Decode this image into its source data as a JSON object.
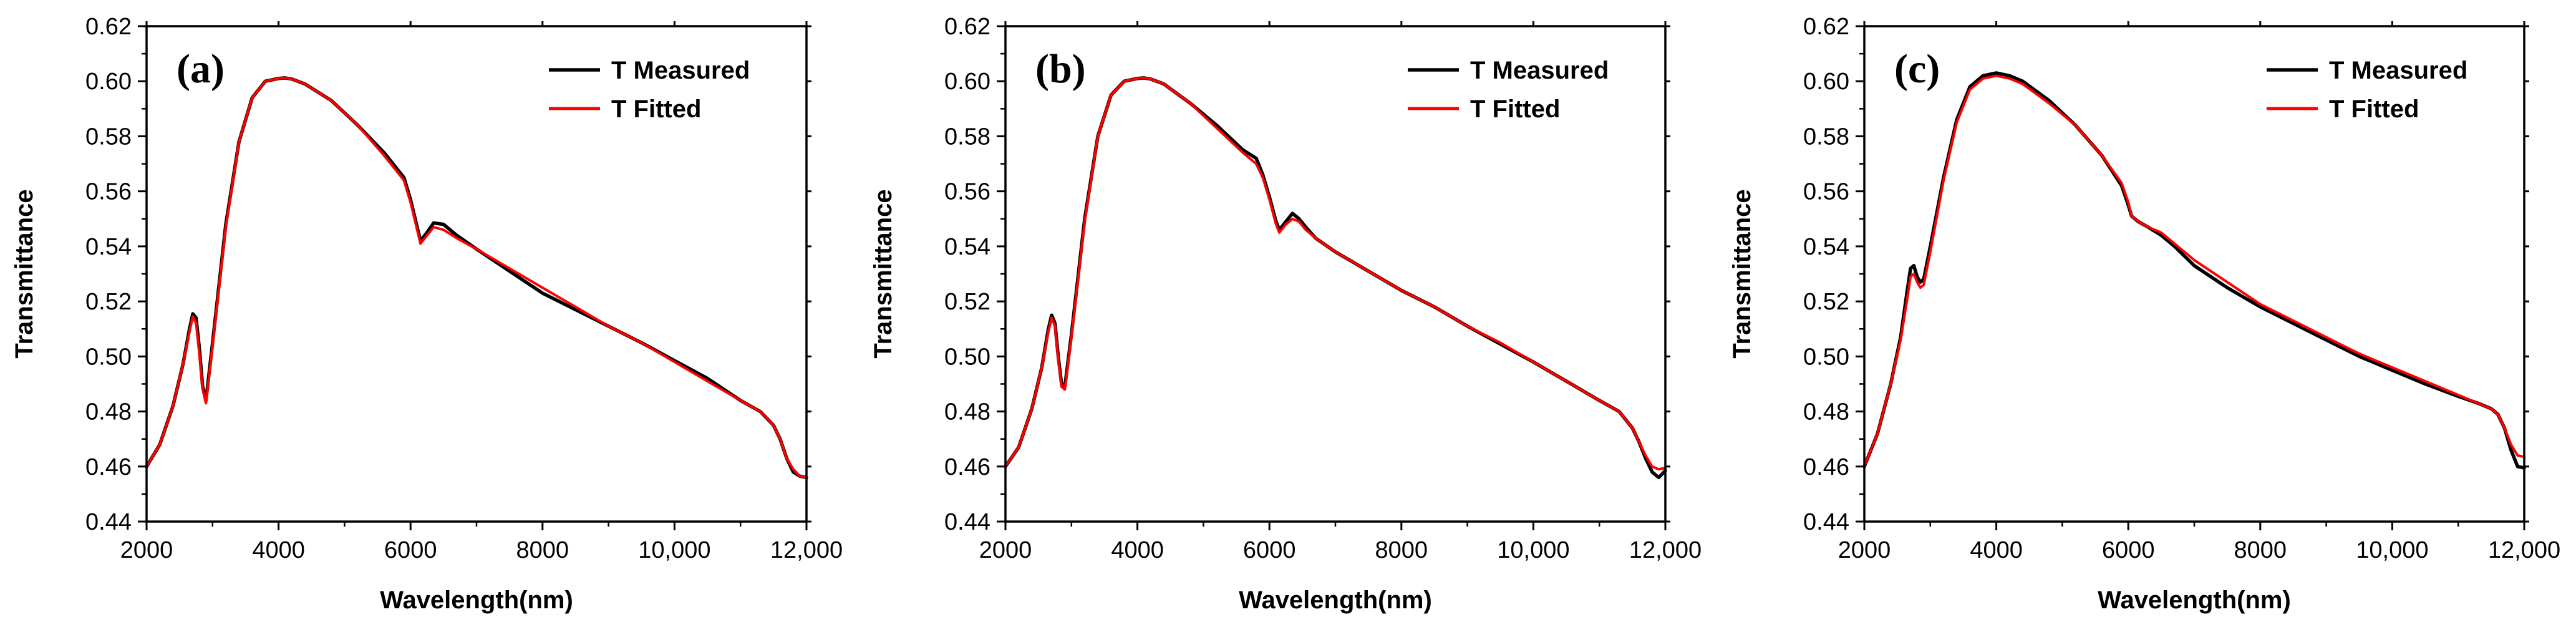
{
  "chart_data": [
    {
      "type": "line",
      "panel_label": "(a)",
      "xlabel": "Wavelength(nm)",
      "ylabel": "Transmittance",
      "xlim": [
        2000,
        12000
      ],
      "ylim": [
        0.44,
        0.62
      ],
      "xticks": [
        2000,
        4000,
        6000,
        8000,
        10000,
        12000
      ],
      "xtick_labels": [
        "2000",
        "4000",
        "6000",
        "8000",
        "10,000",
        "12,000"
      ],
      "yticks": [
        0.44,
        0.46,
        0.48,
        0.5,
        0.52,
        0.54,
        0.56,
        0.58,
        0.6,
        0.62
      ],
      "ytick_labels": [
        "0.44",
        "0.46",
        "0.48",
        "0.50",
        "0.52",
        "0.54",
        "0.56",
        "0.58",
        "0.60",
        "0.62"
      ],
      "legend_position": "top-right",
      "series": [
        {
          "name": "T Measured",
          "color": "#000000",
          "x": [
            2000,
            2200,
            2400,
            2550,
            2650,
            2700,
            2750,
            2800,
            2850,
            2900,
            3000,
            3200,
            3400,
            3600,
            3800,
            4000,
            4100,
            4200,
            4400,
            4800,
            5200,
            5600,
            5900,
            6000,
            6100,
            6150,
            6250,
            6350,
            6500,
            6700,
            7000,
            7500,
            8000,
            8500,
            9000,
            9500,
            10000,
            10500,
            11000,
            11300,
            11500,
            11600,
            11700,
            11800,
            11900,
            12000
          ],
          "y": [
            0.46,
            0.468,
            0.482,
            0.497,
            0.51,
            0.5155,
            0.514,
            0.503,
            0.489,
            0.484,
            0.505,
            0.548,
            0.578,
            0.594,
            0.6,
            0.601,
            0.6012,
            0.6008,
            0.599,
            0.593,
            0.584,
            0.574,
            0.565,
            0.557,
            0.547,
            0.542,
            0.545,
            0.5485,
            0.548,
            0.544,
            0.539,
            0.531,
            0.523,
            0.517,
            0.511,
            0.505,
            0.4985,
            0.492,
            0.484,
            0.48,
            0.475,
            0.47,
            0.463,
            0.458,
            0.4565,
            0.456
          ]
        },
        {
          "name": "T Fitted",
          "color": "#ff0000",
          "x": [
            2000,
            2200,
            2400,
            2550,
            2650,
            2700,
            2750,
            2800,
            2850,
            2900,
            3000,
            3200,
            3400,
            3600,
            3800,
            4000,
            4100,
            4200,
            4400,
            4800,
            5200,
            5600,
            5900,
            6000,
            6100,
            6150,
            6250,
            6350,
            6500,
            6700,
            7000,
            7500,
            8000,
            8500,
            9000,
            9500,
            10000,
            10500,
            11000,
            11300,
            11500,
            11600,
            11700,
            11800,
            11900,
            12000
          ],
          "y": [
            0.46,
            0.468,
            0.482,
            0.497,
            0.509,
            0.5145,
            0.512,
            0.501,
            0.488,
            0.483,
            0.504,
            0.547,
            0.578,
            0.594,
            0.6,
            0.601,
            0.6012,
            0.6008,
            0.599,
            0.593,
            0.584,
            0.573,
            0.564,
            0.556,
            0.546,
            0.541,
            0.544,
            0.547,
            0.546,
            0.543,
            0.539,
            0.532,
            0.525,
            0.518,
            0.511,
            0.505,
            0.498,
            0.491,
            0.484,
            0.48,
            0.475,
            0.47,
            0.463,
            0.459,
            0.4565,
            0.456
          ]
        }
      ]
    },
    {
      "type": "line",
      "panel_label": "(b)",
      "xlabel": "Wavelength(nm)",
      "ylabel": "Transmittance",
      "xlim": [
        2000,
        12000
      ],
      "ylim": [
        0.44,
        0.62
      ],
      "xticks": [
        2000,
        4000,
        6000,
        8000,
        10000,
        12000
      ],
      "xtick_labels": [
        "2000",
        "4000",
        "6000",
        "8000",
        "10,000",
        "12,000"
      ],
      "yticks": [
        0.44,
        0.46,
        0.48,
        0.5,
        0.52,
        0.54,
        0.56,
        0.58,
        0.6,
        0.62
      ],
      "ytick_labels": [
        "0.44",
        "0.46",
        "0.48",
        "0.50",
        "0.52",
        "0.54",
        "0.56",
        "0.58",
        "0.60",
        "0.62"
      ],
      "legend_position": "top-right",
      "series": [
        {
          "name": "T Measured",
          "color": "#000000",
          "x": [
            2000,
            2200,
            2400,
            2550,
            2650,
            2700,
            2750,
            2800,
            2850,
            2900,
            3000,
            3200,
            3400,
            3600,
            3800,
            4000,
            4100,
            4200,
            4400,
            4800,
            5200,
            5600,
            5800,
            5900,
            6000,
            6100,
            6150,
            6250,
            6350,
            6450,
            6550,
            6700,
            7000,
            7500,
            8000,
            8500,
            9000,
            9500,
            10000,
            10500,
            11000,
            11300,
            11500,
            11600,
            11700,
            11800,
            11900,
            12000
          ],
          "y": [
            0.46,
            0.467,
            0.481,
            0.496,
            0.51,
            0.515,
            0.512,
            0.5,
            0.49,
            0.489,
            0.508,
            0.55,
            0.58,
            0.595,
            0.6,
            0.601,
            0.6012,
            0.6008,
            0.599,
            0.592,
            0.584,
            0.575,
            0.572,
            0.566,
            0.558,
            0.549,
            0.546,
            0.549,
            0.552,
            0.55,
            0.547,
            0.543,
            0.538,
            0.531,
            0.524,
            0.518,
            0.511,
            0.5045,
            0.498,
            0.491,
            0.484,
            0.48,
            0.474,
            0.469,
            0.463,
            0.458,
            0.456,
            0.4585
          ]
        },
        {
          "name": "T Fitted",
          "color": "#ff0000",
          "x": [
            2000,
            2200,
            2400,
            2550,
            2650,
            2700,
            2750,
            2800,
            2850,
            2900,
            3000,
            3200,
            3400,
            3600,
            3800,
            4000,
            4100,
            4200,
            4400,
            4800,
            5200,
            5600,
            5800,
            5900,
            6000,
            6100,
            6150,
            6250,
            6350,
            6450,
            6550,
            6700,
            7000,
            7500,
            8000,
            8500,
            9000,
            9500,
            10000,
            10500,
            11000,
            11300,
            11500,
            11600,
            11700,
            11800,
            11900,
            12000
          ],
          "y": [
            0.46,
            0.467,
            0.481,
            0.496,
            0.509,
            0.514,
            0.511,
            0.499,
            0.489,
            0.488,
            0.507,
            0.549,
            0.58,
            0.595,
            0.6,
            0.601,
            0.6012,
            0.6008,
            0.599,
            0.592,
            0.583,
            0.574,
            0.57,
            0.565,
            0.557,
            0.548,
            0.545,
            0.548,
            0.55,
            0.549,
            0.546,
            0.543,
            0.538,
            0.531,
            0.524,
            0.518,
            0.511,
            0.505,
            0.498,
            0.491,
            0.484,
            0.48,
            0.474,
            0.469,
            0.464,
            0.46,
            0.459,
            0.4595
          ]
        }
      ]
    },
    {
      "type": "line",
      "panel_label": "(c)",
      "xlabel": "Wavelength(nm)",
      "ylabel": "Transmittance",
      "xlim": [
        2000,
        12000
      ],
      "ylim": [
        0.44,
        0.62
      ],
      "xticks": [
        2000,
        4000,
        6000,
        8000,
        10000,
        12000
      ],
      "xtick_labels": [
        "2000",
        "4000",
        "6000",
        "8000",
        "10,000",
        "12,000"
      ],
      "yticks": [
        0.44,
        0.46,
        0.48,
        0.5,
        0.52,
        0.54,
        0.56,
        0.58,
        0.6,
        0.62
      ],
      "ytick_labels": [
        "0.44",
        "0.46",
        "0.48",
        "0.50",
        "0.52",
        "0.54",
        "0.56",
        "0.58",
        "0.60",
        "0.62"
      ],
      "legend_position": "top-right",
      "series": [
        {
          "name": "T Measured",
          "color": "#000000",
          "x": [
            2000,
            2200,
            2400,
            2550,
            2650,
            2700,
            2750,
            2800,
            2850,
            2900,
            3000,
            3200,
            3400,
            3600,
            3800,
            4000,
            4200,
            4400,
            4800,
            5200,
            5600,
            5900,
            6000,
            6050,
            6150,
            6300,
            6500,
            6700,
            7000,
            7500,
            8000,
            8500,
            9000,
            9500,
            10000,
            10500,
            11000,
            11300,
            11500,
            11600,
            11700,
            11800,
            11900,
            12000
          ],
          "y": [
            0.46,
            0.472,
            0.49,
            0.507,
            0.524,
            0.532,
            0.533,
            0.529,
            0.527,
            0.528,
            0.54,
            0.565,
            0.586,
            0.598,
            0.602,
            0.603,
            0.602,
            0.6,
            0.593,
            0.584,
            0.573,
            0.562,
            0.555,
            0.551,
            0.549,
            0.547,
            0.544,
            0.54,
            0.533,
            0.525,
            0.518,
            0.512,
            0.506,
            0.5,
            0.495,
            0.49,
            0.4855,
            0.483,
            0.481,
            0.479,
            0.474,
            0.466,
            0.46,
            0.4595
          ]
        },
        {
          "name": "T Fitted",
          "color": "#ff0000",
          "x": [
            2000,
            2200,
            2400,
            2550,
            2650,
            2700,
            2750,
            2800,
            2850,
            2900,
            3000,
            3200,
            3400,
            3600,
            3800,
            4000,
            4200,
            4400,
            4800,
            5200,
            5600,
            5900,
            6000,
            6050,
            6150,
            6300,
            6500,
            6700,
            7000,
            7500,
            8000,
            8500,
            9000,
            9500,
            10000,
            10500,
            11000,
            11300,
            11500,
            11600,
            11700,
            11800,
            11900,
            12000
          ],
          "y": [
            0.46,
            0.472,
            0.49,
            0.506,
            0.521,
            0.529,
            0.53,
            0.527,
            0.525,
            0.526,
            0.538,
            0.564,
            0.585,
            0.597,
            0.601,
            0.602,
            0.601,
            0.599,
            0.592,
            0.584,
            0.573,
            0.563,
            0.556,
            0.551,
            0.549,
            0.547,
            0.545,
            0.541,
            0.535,
            0.527,
            0.519,
            0.513,
            0.507,
            0.501,
            0.496,
            0.491,
            0.486,
            0.483,
            0.481,
            0.479,
            0.474,
            0.468,
            0.464,
            0.4635
          ]
        }
      ]
    }
  ]
}
